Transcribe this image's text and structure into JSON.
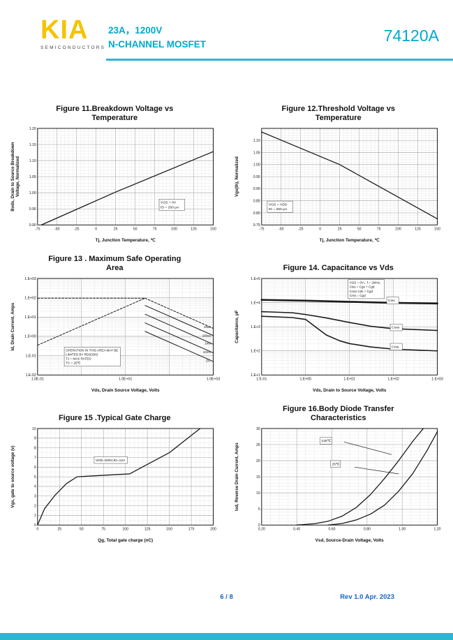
{
  "header": {
    "logo": "KIA",
    "logo_sub": "SEMICONDUCTORS",
    "rating": "23A，1200V",
    "device_type": "N-CHANNEL MOSFET",
    "part_number": "74120A",
    "accent_color": "#00A9CE",
    "logo_color": "#F5C300"
  },
  "footer": {
    "page": "6 / 8",
    "rev": "Rev 1.0 Apr. 2023",
    "text_color": "#1565C0",
    "bar_color": "#2FB5D4"
  },
  "chart_data": [
    {
      "type": "line",
      "title": "Figure 11.Breakdown Voltage vs Temperature",
      "xlabel": "Tj, Junction Temperature, ℃",
      "ylabel": [
        "Bvds, Drain to Source Breakdown",
        "Voltage, Normalized"
      ],
      "xscale": "linear",
      "yscale": "linear",
      "xlim": [
        -75,
        150
      ],
      "ylim": [
        0.9,
        1.2
      ],
      "xticks": [
        -75,
        -50,
        -25,
        0,
        25,
        50,
        75,
        100,
        125,
        150
      ],
      "yticks": [
        0.9,
        0.95,
        1.0,
        1.05,
        1.1,
        1.15,
        1.2
      ],
      "ytick_labels": [
        "0.90",
        "0.95",
        "1.00",
        "1.05",
        "1.10",
        "1.15",
        "1.20"
      ],
      "xminor": 5,
      "yminor": 5,
      "series": [
        {
          "name": "Bvds normalized",
          "x": [
            -70,
            25,
            150
          ],
          "y": [
            0.9,
            1.002,
            1.128
          ],
          "width": 1.3
        }
      ],
      "notes": [
        {
          "lines": [
            "VGS = 0V",
            "ID = 250 μA"
          ],
          "xf": 0.7,
          "yf": 0.74,
          "box": true
        }
      ]
    },
    {
      "type": "line",
      "title": "Figure 12.Threshold Voltage vs Temperature",
      "xlabel": "Tj, Junction Temperature, ℃",
      "ylabel": [
        "Vgs(th), Normalized"
      ],
      "xscale": "linear",
      "yscale": "linear",
      "xlim": [
        -75,
        150
      ],
      "ylim": [
        0.75,
        1.15
      ],
      "xticks": [
        -75,
        -50,
        -25,
        0,
        25,
        50,
        75,
        100,
        125,
        150
      ],
      "yticks": [
        0.75,
        0.8,
        0.85,
        0.9,
        0.95,
        1.0,
        1.05,
        1.1,
        1.15
      ],
      "ytick_labels": [
        "0.75",
        "0.80",
        "0.85",
        "0.90",
        "0.95",
        "1.00",
        "1.05",
        "1.10",
        ""
      ],
      "xminor": 5,
      "yminor": 5,
      "series": [
        {
          "name": "Vgs(th) normalized",
          "x": [
            -75,
            25,
            150
          ],
          "y": [
            1.135,
            1.0,
            0.775
          ],
          "width": 1.3
        }
      ],
      "notes": [
        {
          "lines": [
            "VGS = VDS",
            "ID = 250 μA"
          ],
          "xf": 0.04,
          "yf": 0.76,
          "box": true
        }
      ]
    },
    {
      "type": "line",
      "title": "Figure 13 . Maximum Safe Operating Area",
      "xlabel": "Vds, Drain Source Voltage, Volts",
      "ylabel": [
        "Id, Drain Current, Amps"
      ],
      "xscale": "log",
      "yscale": "log",
      "xlim": [
        0.1,
        1000
      ],
      "ylim": [
        0.01,
        1000
      ],
      "xticks": [
        0.1,
        10,
        1000
      ],
      "xtick_labels": [
        "1.0E-01",
        "1.0E+01",
        "1.0E+03"
      ],
      "yticks": [
        1000,
        100,
        10,
        1,
        0.1,
        0.01
      ],
      "ytick_labels": [
        "1.E+03",
        "1.E+02",
        "1.E+01",
        "1.E+00",
        "1.E-01",
        "1.E-02"
      ],
      "series": [
        {
          "name": "pulsed current limit",
          "x": [
            0.1,
            28
          ],
          "y": [
            95,
            95
          ],
          "dash": true,
          "width": 1
        },
        {
          "name": "RDS(on) limit",
          "x": [
            0.1,
            28
          ],
          "y": [
            0.35,
            95
          ],
          "dash": true,
          "width": 1
        },
        {
          "name": "10us",
          "x": [
            28,
            1000
          ],
          "y": [
            95,
            2.6
          ],
          "dash": true,
          "width": 1
        },
        {
          "name": "100us",
          "x": [
            28,
            1000
          ],
          "y": [
            40,
            1.1
          ],
          "width": 1
        },
        {
          "name": "1ms",
          "x": [
            28,
            1000
          ],
          "y": [
            14,
            0.39
          ],
          "width": 1
        },
        {
          "name": "10ms",
          "x": [
            28,
            1000
          ],
          "y": [
            5,
            0.14
          ],
          "width": 1
        },
        {
          "name": "DC",
          "x": [
            28,
            1000
          ],
          "y": [
            1.8,
            0.05
          ],
          "width": 1
        }
      ],
      "notes": [
        {
          "lines": [
            "OPERATION IN THIS AREA MAY BE",
            "LIMITED BY RDS(ON)",
            "TJ = MAX RATED",
            "TC = 25℃"
          ],
          "xf": 0.16,
          "yf": 0.72,
          "box": true,
          "size": 4.6
        },
        {
          "lines": [
            "10us"
          ],
          "xf": 0.985,
          "yf": 0.48,
          "anchor": "end",
          "size": 4.5
        },
        {
          "lines": [
            "100us"
          ],
          "xf": 0.985,
          "yf": 0.57,
          "anchor": "end",
          "size": 4.5
        },
        {
          "lines": [
            "1ms"
          ],
          "xf": 0.985,
          "yf": 0.65,
          "anchor": "end",
          "size": 4.5
        },
        {
          "lines": [
            "10ms"
          ],
          "xf": 0.985,
          "yf": 0.74,
          "anchor": "end",
          "size": 4.5
        },
        {
          "lines": [
            "DC"
          ],
          "xf": 0.985,
          "yf": 0.83,
          "anchor": "end",
          "size": 4.5
        }
      ]
    },
    {
      "type": "line",
      "title": "Figure 14. Capacitance vs Vds",
      "xlabel": "Vds, Drain to Source Voltage, Volts",
      "ylabel": [
        "Capacitance, pF"
      ],
      "xscale": "log",
      "yscale": "log",
      "xlim": [
        0.1,
        1000
      ],
      "ylim": [
        10,
        100000
      ],
      "xticks": [
        0.1,
        1,
        10,
        100,
        1000
      ],
      "xtick_labels": [
        "1.E-01",
        "1.E+00",
        "1.E+01",
        "1.E+02",
        "1.E+03"
      ],
      "yticks": [
        10,
        100,
        1000,
        10000,
        100000
      ],
      "ytick_labels": [
        "1.E+1",
        "1.E+2",
        "1.E+3",
        "1.E+4",
        "1.E+5"
      ],
      "series": [
        {
          "name": "Ciss",
          "x": [
            0.1,
            1,
            10,
            100,
            1000
          ],
          "y": [
            13000,
            12000,
            10800,
            9800,
            9200
          ],
          "width": 2.6
        },
        {
          "name": "Coss",
          "x": [
            0.1,
            0.5,
            1,
            3,
            10,
            30,
            100,
            1000
          ],
          "y": [
            4200,
            3800,
            3200,
            2300,
            1500,
            1050,
            830,
            700
          ],
          "width": 1.6
        },
        {
          "name": "Crss",
          "x": [
            0.1,
            0.5,
            1,
            1.8,
            3,
            6,
            10,
            30,
            100,
            1000
          ],
          "y": [
            2700,
            2400,
            2000,
            900,
            450,
            260,
            200,
            145,
            118,
            100
          ],
          "width": 1.6
        }
      ],
      "notes": [
        {
          "lines": [
            "VGS = 0V，f = 1MHz,",
            "Ciss = Cgs + Cgd",
            "Coss Cds + Cgd",
            "Crss = Cgd"
          ],
          "xf": 0.5,
          "yf": 0.02,
          "box": true,
          "size": 4.6
        },
        {
          "lines": [
            "Ciss"
          ],
          "xf": 0.72,
          "yf": 0.2,
          "box": true
        },
        {
          "lines": [
            "Coss"
          ],
          "xf": 0.74,
          "yf": 0.48,
          "box": true
        },
        {
          "lines": [
            "Crss"
          ],
          "xf": 0.74,
          "yf": 0.68,
          "box": true
        }
      ]
    },
    {
      "type": "line",
      "title": "Figure 15 .Typical Gate Charge",
      "xlabel": "Qg, Total gate charge (nC)",
      "ylabel": [
        "Vgs, gate to source voltage (v)"
      ],
      "xscale": "linear",
      "yscale": "linear",
      "xlim": [
        0,
        200
      ],
      "ylim": [
        0,
        10
      ],
      "xticks": [
        0,
        25,
        50,
        75,
        100,
        125,
        150,
        175,
        200
      ],
      "yticks": [
        0,
        1,
        2,
        3,
        4,
        5,
        6,
        7,
        8,
        9,
        10
      ],
      "xminor": 5,
      "yminor": 2,
      "series": [
        {
          "name": "gate charge curve",
          "x": [
            0,
            8,
            20,
            33,
            45,
            55,
            105,
            115,
            150,
            185
          ],
          "y": [
            0,
            1.7,
            3.1,
            4.3,
            5.0,
            5.05,
            5.3,
            5.8,
            7.5,
            10
          ],
          "width": 1.3
        }
      ],
      "notes": [
        {
          "lines": [
            "VDD=500V,ID=12A"
          ],
          "xf": 0.33,
          "yf": 0.3,
          "box": true
        }
      ]
    },
    {
      "type": "line",
      "title": "Figure 16.Body Diode Transfer Characteristics",
      "xlabel": "Vsd, Source-Drain Voltage, Volts",
      "ylabel": [
        "Isd, Reverse Drain Current, Amps"
      ],
      "xscale": "linear",
      "yscale": "linear",
      "xlim": [
        0.2,
        1.2
      ],
      "ylim": [
        0,
        30
      ],
      "xticks": [
        0.2,
        0.4,
        0.6,
        0.8,
        1.0,
        1.2
      ],
      "xtick_labels": [
        "0.20",
        "0.40",
        "0.60",
        "0.80",
        "1.00",
        "1.20"
      ],
      "yticks": [
        0,
        5,
        10,
        15,
        20,
        25,
        30
      ],
      "xminor": 4,
      "yminor": 5,
      "series": [
        {
          "name": "125℃",
          "x": [
            0.4,
            0.5,
            0.58,
            0.66,
            0.74,
            0.82,
            0.9,
            0.98,
            1.06,
            1.12
          ],
          "y": [
            0,
            0.4,
            1.2,
            2.8,
            5.5,
            9.5,
            14.5,
            20,
            26,
            30
          ],
          "width": 1.3
        },
        {
          "name": "25℃",
          "x": [
            0.58,
            0.66,
            0.74,
            0.82,
            0.9,
            0.98,
            1.06,
            1.14,
            1.2
          ],
          "y": [
            0,
            0.5,
            1.6,
            3.4,
            6.2,
            10.5,
            16,
            23,
            29
          ],
          "width": 1.3
        }
      ],
      "notes": [
        {
          "lines": [
            "125℃"
          ],
          "xf": 0.34,
          "yf": 0.1,
          "box": true
        },
        {
          "lines": [
            "25℃"
          ],
          "xf": 0.4,
          "yf": 0.34,
          "box": true
        }
      ],
      "leaders": [
        {
          "x1f": 0.47,
          "y1f": 0.14,
          "x2f": 0.74,
          "y2f": 0.27
        },
        {
          "x1f": 0.53,
          "y1f": 0.4,
          "x2f": 0.78,
          "y2f": 0.47
        }
      ]
    }
  ]
}
